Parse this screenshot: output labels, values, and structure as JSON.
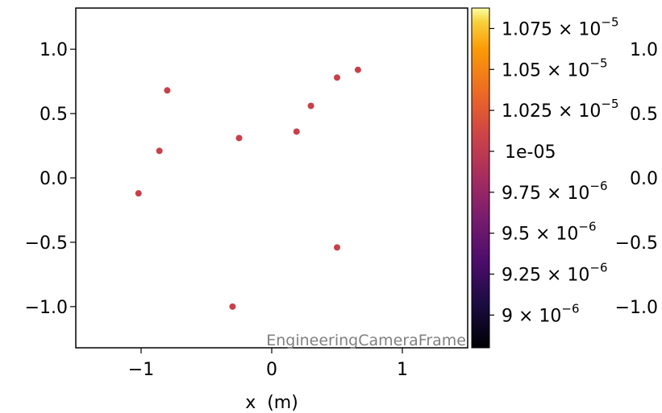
{
  "chart_data": {
    "type": "scatter",
    "title": "",
    "xlabel": "x  (m)",
    "ylabel": "",
    "xlim": [
      -1.5,
      1.5
    ],
    "ylim": [
      -1.32,
      1.32
    ],
    "x_ticks": [
      {
        "value": -1,
        "label": "−1"
      },
      {
        "value": 0,
        "label": "0"
      },
      {
        "value": 1,
        "label": "1"
      }
    ],
    "y_ticks": [
      {
        "value": 1.0,
        "label": "1.0"
      },
      {
        "value": 0.5,
        "label": "0.5"
      },
      {
        "value": 0.0,
        "label": "0.0"
      },
      {
        "value": -0.5,
        "label": "−0.5"
      },
      {
        "value": -1.0,
        "label": "−1.0"
      }
    ],
    "right_y_ticks": [
      {
        "value": 1.0,
        "label": "1.0"
      },
      {
        "value": 0.5,
        "label": "0.5"
      },
      {
        "value": 0.0,
        "label": "0.0"
      },
      {
        "value": -0.5,
        "label": "−0.5"
      },
      {
        "value": -1.0,
        "label": "−1.0"
      }
    ],
    "points": [
      {
        "x": -1.02,
        "y": -0.12
      },
      {
        "x": -0.86,
        "y": 0.21
      },
      {
        "x": -0.8,
        "y": 0.68
      },
      {
        "x": -0.25,
        "y": 0.31
      },
      {
        "x": -0.3,
        "y": -1.0
      },
      {
        "x": 0.19,
        "y": 0.36
      },
      {
        "x": 0.3,
        "y": 0.56
      },
      {
        "x": 0.5,
        "y": 0.78
      },
      {
        "x": 0.66,
        "y": 0.84
      },
      {
        "x": 0.5,
        "y": -0.54
      }
    ],
    "point_color": "#c8404a",
    "annotation": "EngineeringCameraFrame",
    "annotation_color": "#808080",
    "colorbar": {
      "colormap": "inferno",
      "min": 8.8e-06,
      "max": 1.0875e-05,
      "ticks": [
        {
          "value": 1.075e-05,
          "mantissa": "1.075",
          "exp": "−5"
        },
        {
          "value": 1.05e-05,
          "mantissa": "1.05",
          "exp": "−5"
        },
        {
          "value": 1.025e-05,
          "mantissa": "1.025",
          "exp": "−5"
        },
        {
          "value": 1e-05,
          "plain": "1e-05"
        },
        {
          "value": 9.75e-06,
          "mantissa": "9.75",
          "exp": "−6"
        },
        {
          "value": 9.5e-06,
          "mantissa": "9.5",
          "exp": "−6"
        },
        {
          "value": 9.25e-06,
          "mantissa": "9.25",
          "exp": "−6"
        },
        {
          "value": 9e-06,
          "mantissa": "9",
          "exp": "−6"
        }
      ]
    }
  }
}
